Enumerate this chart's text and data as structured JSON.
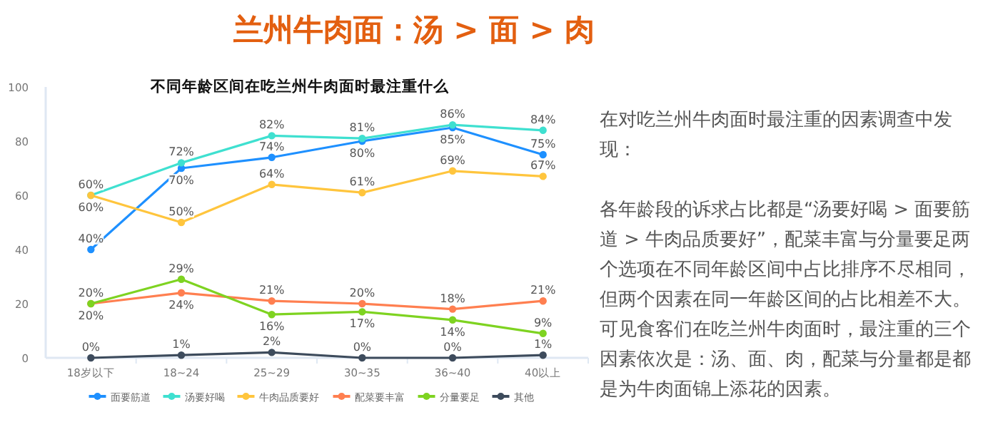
{
  "chart_data": {
    "type": "line",
    "title": "兰州牛肉面：汤 > 面 > 肉",
    "subtitle": "不同年龄区间在吃兰州牛肉面时最注重什么",
    "categories": [
      "18岁以下",
      "18~24",
      "25~29",
      "30~35",
      "36~40",
      "40以上"
    ],
    "series": [
      {
        "name": "面要筋道",
        "color": "#1e90ff",
        "values": [
          40,
          70,
          74,
          80,
          85,
          75
        ],
        "value_labels": [
          "40%",
          "70%",
          "74%",
          "80%",
          "85%",
          "75%"
        ]
      },
      {
        "name": "汤要好喝",
        "color": "#3fe0d0",
        "values": [
          60,
          72,
          82,
          81,
          86,
          84
        ],
        "value_labels": [
          "60%",
          "72%",
          "82%",
          "81%",
          "86%",
          "84%"
        ]
      },
      {
        "name": "牛肉品质要好",
        "color": "#ffc53d",
        "values": [
          60,
          50,
          64,
          61,
          69,
          67
        ],
        "value_labels": [
          "60%",
          "50%",
          "64%",
          "61%",
          "69%",
          "67%"
        ]
      },
      {
        "name": "配菜要丰富",
        "color": "#ff7f50",
        "values": [
          20,
          24,
          21,
          20,
          18,
          21
        ],
        "value_labels": [
          "20%",
          "24%",
          "21%",
          "20%",
          "18%",
          "21%"
        ]
      },
      {
        "name": "分量要足",
        "color": "#7ed321",
        "values": [
          20,
          29,
          16,
          17,
          14,
          9
        ],
        "value_labels": [
          "20%",
          "29%",
          "16%",
          "17%",
          "14%",
          "9%"
        ]
      },
      {
        "name": "其他",
        "color": "#3d4b5c",
        "values": [
          0,
          1,
          2,
          0,
          0,
          1
        ],
        "value_labels": [
          "0%",
          "1%",
          "2%",
          "0%",
          "0%",
          "1%"
        ]
      }
    ],
    "ylim": [
      0,
      100
    ],
    "yticks": [
      0,
      20,
      40,
      60,
      80,
      100
    ],
    "grid": false,
    "legend": "bottom",
    "marker": "circle",
    "annotations": [
      "在对吃兰州牛肉面时最注重的因素调查中发现：",
      "各年龄段的诉求占比都是“汤要好喝 > 面要筋道 > 牛肉品质要好”，配菜丰富与分量要足两个选项在不同年龄区间中占比排序不尽相同，但两个因素在同一年龄区间的占比相差不大。可见食客们在吃兰州牛肉面时，最注重的三个因素依次是：汤、面、肉，配菜与分量都是都是为牛肉面锦上添花的因素。"
    ]
  }
}
